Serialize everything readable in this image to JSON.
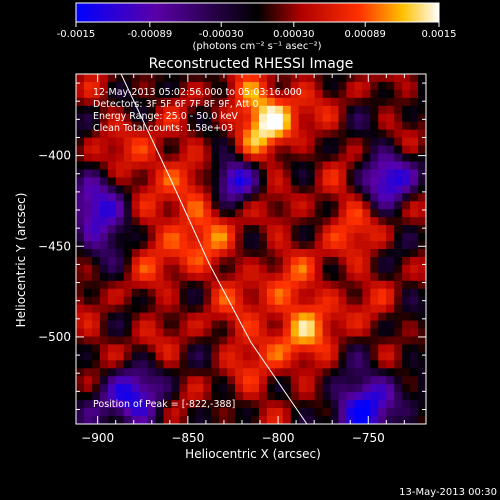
{
  "colorbar": {
    "ticks": [
      "-0.0015",
      "-0.00089",
      "-0.00030",
      "0.00030",
      "0.00089",
      "0.0015"
    ],
    "unit_label": "(photons cm⁻² s⁻¹ asec⁻²)",
    "colors": [
      "#0000ff",
      "#5a00a8",
      "#000000",
      "#b00000",
      "#ff3000",
      "#ffc000",
      "#ffffff"
    ]
  },
  "chart_data": {
    "type": "heatmap",
    "title": "Reconstructed RHESSI Image",
    "xlabel": "Heliocentric X (arcsec)",
    "ylabel": "Heliocentric Y (arcsec)",
    "xlim": [
      -912,
      -718
    ],
    "ylim": [
      -548,
      -355
    ],
    "x_ticks": [
      -900,
      -850,
      -800,
      -750
    ],
    "y_ticks": [
      -400,
      -450,
      -500
    ],
    "x_tick_labels": [
      "−900",
      "−850",
      "−800",
      "−750"
    ],
    "y_tick_labels": [
      "−400",
      "−450",
      "−500"
    ],
    "annotations": [
      "12-May-2013 05:02:56.000 to 05:03:16.000",
      "Detectors: 3F 5F 6F 7F 8F 9F, Att 0",
      "Energy Range: 25.0 - 50.0 keV",
      "Clean    Total counts: 1.58e+03"
    ],
    "peak_label": "Position of Peak = [-822,-388]",
    "peak": [
      -822,
      -388
    ],
    "limb_curve": [
      [
        -887,
        -355
      ],
      [
        -860,
        -412
      ],
      [
        -838,
        -460
      ],
      [
        -815,
        -503
      ],
      [
        -784,
        -548
      ]
    ],
    "color_range": [
      -0.0015,
      0.0015
    ]
  },
  "timestamp": "13-May-2013 00:30"
}
